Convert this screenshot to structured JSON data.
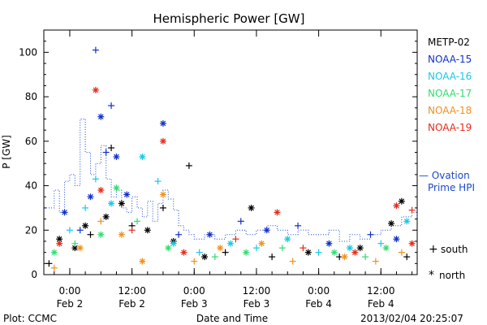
{
  "chart_data": {
    "type": "scatter",
    "title": "Hemispheric Power [GW]",
    "ylabel": "P [GW]",
    "xlabel": "Date and Time",
    "ylim": [
      0,
      110
    ],
    "yticks": [
      0,
      20,
      40,
      60,
      80,
      100
    ],
    "xlim": [
      "2013-02-01T19:00",
      "2013-02-04T19:00"
    ],
    "xticks": [
      {
        "t": "2013-02-02T00:00",
        "time": "0:00",
        "date": "Feb 2"
      },
      {
        "t": "2013-02-02T12:00",
        "time": "12:00",
        "date": "Feb 2"
      },
      {
        "t": "2013-02-03T00:00",
        "time": "0:00",
        "date": "Feb 3"
      },
      {
        "t": "2013-02-03T12:00",
        "time": "12:00",
        "date": "Feb 3"
      },
      {
        "t": "2013-02-04T00:00",
        "time": "0:00",
        "date": "Feb 4"
      },
      {
        "t": "2013-02-04T12:00",
        "time": "12:00",
        "date": "Feb 4"
      }
    ],
    "legend": [
      {
        "name": "METP-02",
        "color": "#000000"
      },
      {
        "name": "NOAA-15",
        "color": "#1030c8"
      },
      {
        "name": "NOAA-16",
        "color": "#18c8e8"
      },
      {
        "name": "NOAA-17",
        "color": "#30dc70"
      },
      {
        "name": "NOAA-18",
        "color": "#f0901c"
      },
      {
        "name": "NOAA-19",
        "color": "#e82818"
      }
    ],
    "ovation": {
      "label_line1": "— Ovation",
      "label_line2": "Prime HPI",
      "color": "#1a47c8",
      "x": [
        "2013-02-01T19:00",
        "2013-02-01T21:00",
        "2013-02-01T22:00",
        "2013-02-01T23:00",
        "2013-02-02T00:00",
        "2013-02-02T01:00",
        "2013-02-02T02:00",
        "2013-02-02T03:00",
        "2013-02-02T04:00",
        "2013-02-02T05:00",
        "2013-02-02T06:00",
        "2013-02-02T07:00",
        "2013-02-02T08:00",
        "2013-02-02T09:00",
        "2013-02-02T10:00",
        "2013-02-02T11:00",
        "2013-02-02T12:00",
        "2013-02-02T13:00",
        "2013-02-02T14:00",
        "2013-02-02T15:00",
        "2013-02-02T16:00",
        "2013-02-02T17:00",
        "2013-02-02T18:00",
        "2013-02-02T19:00",
        "2013-02-02T20:00",
        "2013-02-02T21:00",
        "2013-02-02T22:00",
        "2013-02-02T23:00",
        "2013-02-03T00:00",
        "2013-02-03T02:00",
        "2013-02-03T04:00",
        "2013-02-03T06:00",
        "2013-02-03T08:00",
        "2013-02-03T10:00",
        "2013-02-03T12:00",
        "2013-02-03T14:00",
        "2013-02-03T16:00",
        "2013-02-03T18:00",
        "2013-02-03T20:00",
        "2013-02-03T22:00",
        "2013-02-04T00:00",
        "2013-02-04T02:00",
        "2013-02-04T04:00",
        "2013-02-04T06:00",
        "2013-02-04T08:00",
        "2013-02-04T10:00",
        "2013-02-04T12:00",
        "2013-02-04T14:00",
        "2013-02-04T16:00",
        "2013-02-04T18:00",
        "2013-02-04T19:00"
      ],
      "y": [
        30,
        38,
        28,
        42,
        45,
        40,
        70,
        55,
        45,
        50,
        58,
        43,
        35,
        38,
        30,
        28,
        35,
        30,
        26,
        33,
        24,
        32,
        38,
        34,
        29,
        22,
        20,
        18,
        16,
        18,
        16,
        18,
        20,
        18,
        20,
        22,
        20,
        18,
        20,
        18,
        18,
        20,
        15,
        18,
        16,
        18,
        20,
        22,
        26,
        28,
        26
      ]
    },
    "series": [
      {
        "name": "METP-02",
        "points": [
          {
            "x": "2013-02-01T20:00",
            "y": 5,
            "m": "+"
          },
          {
            "x": "2013-02-01T22:00",
            "y": 16,
            "m": "*"
          },
          {
            "x": "2013-02-02T01:00",
            "y": 12,
            "m": "*"
          },
          {
            "x": "2013-02-02T03:00",
            "y": 22,
            "m": "*"
          },
          {
            "x": "2013-02-02T04:00",
            "y": 18,
            "m": "+"
          },
          {
            "x": "2013-02-02T07:00",
            "y": 26,
            "m": "*"
          },
          {
            "x": "2013-02-02T08:00",
            "y": 57,
            "m": "+"
          },
          {
            "x": "2013-02-02T10:00",
            "y": 32,
            "m": "*"
          },
          {
            "x": "2013-02-02T12:00",
            "y": 22,
            "m": "+"
          },
          {
            "x": "2013-02-02T15:00",
            "y": 20,
            "m": "*"
          },
          {
            "x": "2013-02-02T18:00",
            "y": 30,
            "m": "+"
          },
          {
            "x": "2013-02-02T20:00",
            "y": 15,
            "m": "*"
          },
          {
            "x": "2013-02-02T23:00",
            "y": 49,
            "m": "+"
          },
          {
            "x": "2013-02-03T02:00",
            "y": 8,
            "m": "*"
          },
          {
            "x": "2013-02-03T06:00",
            "y": 10,
            "m": "+"
          },
          {
            "x": "2013-02-03T11:00",
            "y": 30,
            "m": "*"
          },
          {
            "x": "2013-02-03T15:00",
            "y": 8,
            "m": "+"
          },
          {
            "x": "2013-02-03T22:00",
            "y": 10,
            "m": "*"
          },
          {
            "x": "2013-02-04T04:00",
            "y": 8,
            "m": "+"
          },
          {
            "x": "2013-02-04T08:00",
            "y": 12,
            "m": "*"
          },
          {
            "x": "2013-02-04T14:00",
            "y": 23,
            "m": "*"
          },
          {
            "x": "2013-02-04T16:00",
            "y": 33,
            "m": "*"
          },
          {
            "x": "2013-02-04T17:00",
            "y": 8,
            "m": "+"
          }
        ]
      },
      {
        "name": "NOAA-15",
        "points": [
          {
            "x": "2013-02-01T23:00",
            "y": 28,
            "m": "*"
          },
          {
            "x": "2013-02-02T02:00",
            "y": 20,
            "m": "+"
          },
          {
            "x": "2013-02-02T04:00",
            "y": 35,
            "m": "*"
          },
          {
            "x": "2013-02-02T05:00",
            "y": 101,
            "m": "+"
          },
          {
            "x": "2013-02-02T06:00",
            "y": 71,
            "m": "*"
          },
          {
            "x": "2013-02-02T07:00",
            "y": 55,
            "m": "+"
          },
          {
            "x": "2013-02-02T08:00",
            "y": 76,
            "m": "+"
          },
          {
            "x": "2013-02-02T09:00",
            "y": 53,
            "m": "*"
          },
          {
            "x": "2013-02-02T11:00",
            "y": 36,
            "m": "*"
          },
          {
            "x": "2013-02-02T18:00",
            "y": 68,
            "m": "*"
          },
          {
            "x": "2013-02-02T21:00",
            "y": 18,
            "m": "+"
          },
          {
            "x": "2013-02-03T03:00",
            "y": 18,
            "m": "*"
          },
          {
            "x": "2013-02-03T09:00",
            "y": 24,
            "m": "+"
          },
          {
            "x": "2013-02-03T14:00",
            "y": 20,
            "m": "*"
          },
          {
            "x": "2013-02-03T20:00",
            "y": 22,
            "m": "+"
          },
          {
            "x": "2013-02-04T02:00",
            "y": 14,
            "m": "*"
          },
          {
            "x": "2013-02-04T10:00",
            "y": 18,
            "m": "+"
          },
          {
            "x": "2013-02-04T15:00",
            "y": 16,
            "m": "*"
          }
        ]
      },
      {
        "name": "NOAA-16",
        "points": [
          {
            "x": "2013-02-02T00:00",
            "y": 20,
            "m": "+"
          },
          {
            "x": "2013-02-02T03:00",
            "y": 30,
            "m": "+"
          },
          {
            "x": "2013-02-02T05:00",
            "y": 43,
            "m": "+"
          },
          {
            "x": "2013-02-02T08:00",
            "y": 32,
            "m": "*"
          },
          {
            "x": "2013-02-02T14:00",
            "y": 53,
            "m": "*"
          },
          {
            "x": "2013-02-02T17:00",
            "y": 42,
            "m": "+"
          },
          {
            "x": "2013-02-02T20:00",
            "y": 14,
            "m": "*"
          },
          {
            "x": "2013-02-03T01:00",
            "y": 10,
            "m": "+"
          },
          {
            "x": "2013-02-03T07:00",
            "y": 14,
            "m": "*"
          },
          {
            "x": "2013-02-03T12:00",
            "y": 12,
            "m": "+"
          },
          {
            "x": "2013-02-03T18:00",
            "y": 16,
            "m": "*"
          },
          {
            "x": "2013-02-04T00:00",
            "y": 10,
            "m": "+"
          },
          {
            "x": "2013-02-04T06:00",
            "y": 12,
            "m": "*"
          },
          {
            "x": "2013-02-04T12:00",
            "y": 14,
            "m": "+"
          },
          {
            "x": "2013-02-04T17:00",
            "y": 24,
            "m": "*"
          }
        ]
      },
      {
        "name": "NOAA-17",
        "points": [
          {
            "x": "2013-02-01T21:00",
            "y": 10,
            "m": "*"
          },
          {
            "x": "2013-02-02T01:00",
            "y": 14,
            "m": "+"
          },
          {
            "x": "2013-02-02T06:00",
            "y": 18,
            "m": "*"
          },
          {
            "x": "2013-02-02T09:00",
            "y": 39,
            "m": "*"
          },
          {
            "x": "2013-02-02T13:00",
            "y": 24,
            "m": "+"
          },
          {
            "x": "2013-02-02T19:00",
            "y": 12,
            "m": "*"
          },
          {
            "x": "2013-02-03T04:00",
            "y": 8,
            "m": "+"
          },
          {
            "x": "2013-02-03T10:00",
            "y": 10,
            "m": "*"
          },
          {
            "x": "2013-02-03T17:00",
            "y": 12,
            "m": "+"
          },
          {
            "x": "2013-02-04T03:00",
            "y": 10,
            "m": "*"
          },
          {
            "x": "2013-02-04T09:00",
            "y": 8,
            "m": "+"
          },
          {
            "x": "2013-02-04T13:00",
            "y": 12,
            "m": "*"
          }
        ]
      },
      {
        "name": "NOAA-18",
        "points": [
          {
            "x": "2013-02-01T21:00",
            "y": 3,
            "m": "+"
          },
          {
            "x": "2013-02-02T02:00",
            "y": 12,
            "m": "*"
          },
          {
            "x": "2013-02-02T06:00",
            "y": 24,
            "m": "+"
          },
          {
            "x": "2013-02-02T10:00",
            "y": 18,
            "m": "*"
          },
          {
            "x": "2013-02-02T14:00",
            "y": 6,
            "m": "*"
          },
          {
            "x": "2013-02-02T18:00",
            "y": 36,
            "m": "*"
          },
          {
            "x": "2013-02-03T00:00",
            "y": 6,
            "m": "+"
          },
          {
            "x": "2013-02-03T05:00",
            "y": 12,
            "m": "*"
          },
          {
            "x": "2013-02-03T13:00",
            "y": 14,
            "m": "*"
          },
          {
            "x": "2013-02-03T19:00",
            "y": 6,
            "m": "+"
          },
          {
            "x": "2013-02-04T05:00",
            "y": 8,
            "m": "*"
          },
          {
            "x": "2013-02-04T11:00",
            "y": 6,
            "m": "+"
          },
          {
            "x": "2013-02-04T16:00",
            "y": 10,
            "m": "+"
          }
        ]
      },
      {
        "name": "NOAA-19",
        "points": [
          {
            "x": "2013-02-01T22:00",
            "y": 14,
            "m": "*"
          },
          {
            "x": "2013-02-02T05:00",
            "y": 83,
            "m": "*"
          },
          {
            "x": "2013-02-02T06:00",
            "y": 38,
            "m": "*"
          },
          {
            "x": "2013-02-02T12:00",
            "y": 20,
            "m": "+"
          },
          {
            "x": "2013-02-02T18:00",
            "y": 60,
            "m": "*"
          },
          {
            "x": "2013-02-02T22:00",
            "y": 10,
            "m": "*"
          },
          {
            "x": "2013-02-03T08:00",
            "y": 16,
            "m": "+"
          },
          {
            "x": "2013-02-03T16:00",
            "y": 28,
            "m": "*"
          },
          {
            "x": "2013-02-03T21:00",
            "y": 12,
            "m": "+"
          },
          {
            "x": "2013-02-04T07:00",
            "y": 10,
            "m": "*"
          },
          {
            "x": "2013-02-04T15:00",
            "y": 31,
            "m": "*"
          },
          {
            "x": "2013-02-04T18:00",
            "y": 29,
            "m": "+"
          },
          {
            "x": "2013-02-04T18:00",
            "y": 14,
            "m": "*"
          }
        ]
      }
    ],
    "marker_legend": [
      {
        "symbol": "+",
        "label": "south"
      },
      {
        "symbol": "*",
        "label": "north"
      }
    ]
  },
  "footer": {
    "left": "Plot: CCMC",
    "right": "2013/02/04 20:25:07"
  }
}
